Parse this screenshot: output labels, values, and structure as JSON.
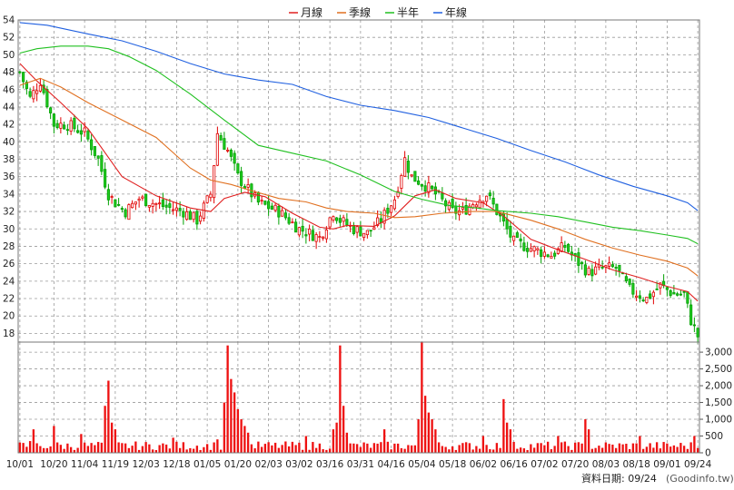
{
  "chart_data": [
    {
      "type": "line",
      "panel": "price",
      "legend": [
        {
          "label": "月線",
          "color": "#e02020"
        },
        {
          "label": "季線",
          "color": "#e07020"
        },
        {
          "label": "半年",
          "color": "#20c020"
        },
        {
          "label": "年線",
          "color": "#2060e0"
        }
      ],
      "legend_placement": "top-center",
      "ylim": [
        17,
        54
      ],
      "yticks": [
        18,
        20,
        22,
        24,
        26,
        28,
        30,
        32,
        34,
        36,
        38,
        40,
        42,
        44,
        46,
        48,
        50,
        52,
        54
      ],
      "grid": true,
      "x_tick_labels": [
        "10/01",
        "10/20",
        "11/04",
        "11/19",
        "12/03",
        "12/18",
        "01/05",
        "01/20",
        "02/03",
        "03/02",
        "03/16",
        "03/31",
        "04/16",
        "05/04",
        "05/18",
        "06/02",
        "06/16",
        "07/02",
        "07/20",
        "08/03",
        "08/18",
        "09/01",
        "09/24"
      ],
      "x_tick_index": [
        0,
        10,
        19,
        28,
        37,
        46,
        55,
        64,
        73,
        82,
        91,
        100,
        109,
        118,
        127,
        136,
        145,
        154,
        163,
        172,
        181,
        190,
        199
      ],
      "n_bars": 200,
      "close_anchors": [
        [
          0,
          48
        ],
        [
          3,
          45
        ],
        [
          6,
          47
        ],
        [
          10,
          42
        ],
        [
          14,
          42
        ],
        [
          19,
          41
        ],
        [
          23,
          38
        ],
        [
          26,
          34
        ],
        [
          28,
          33
        ],
        [
          31,
          32
        ],
        [
          35,
          33.5
        ],
        [
          39,
          33
        ],
        [
          43,
          32.5
        ],
        [
          48,
          32
        ],
        [
          52,
          31
        ],
        [
          56,
          34
        ],
        [
          58,
          41
        ],
        [
          61,
          39
        ],
        [
          64,
          36
        ],
        [
          70,
          33
        ],
        [
          76,
          32
        ],
        [
          82,
          30
        ],
        [
          88,
          29
        ],
        [
          92,
          32
        ],
        [
          94,
          31
        ],
        [
          98,
          30
        ],
        [
          102,
          29.5
        ],
        [
          106,
          31
        ],
        [
          110,
          33.5
        ],
        [
          113,
          38
        ],
        [
          115,
          36
        ],
        [
          119,
          35
        ],
        [
          122,
          34
        ],
        [
          127,
          32
        ],
        [
          130,
          32
        ],
        [
          133,
          33
        ],
        [
          137,
          34
        ],
        [
          140,
          32
        ],
        [
          145,
          28.5
        ],
        [
          152,
          27.5
        ],
        [
          156,
          27
        ],
        [
          160,
          28
        ],
        [
          163,
          26.5
        ],
        [
          167,
          25
        ],
        [
          171,
          25.5
        ],
        [
          175,
          25.5
        ],
        [
          179,
          23
        ],
        [
          184,
          22
        ],
        [
          188,
          23.5
        ],
        [
          192,
          22.5
        ],
        [
          195,
          22.5
        ],
        [
          197,
          19.5
        ],
        [
          199,
          17.7
        ]
      ],
      "ma_series": [
        {
          "name": "月線",
          "color": "#e02020",
          "points": [
            [
              0,
              49
            ],
            [
              5,
              47
            ],
            [
              12,
              44.5
            ],
            [
              20,
              41.5
            ],
            [
              30,
              36
            ],
            [
              40,
              33.8
            ],
            [
              50,
              32.4
            ],
            [
              56,
              32
            ],
            [
              60,
              33.5
            ],
            [
              66,
              34.2
            ],
            [
              72,
              33.7
            ],
            [
              80,
              31.8
            ],
            [
              88,
              30.2
            ],
            [
              92,
              30
            ],
            [
              96,
              30.4
            ],
            [
              104,
              30.3
            ],
            [
              110,
              31.5
            ],
            [
              116,
              33.8
            ],
            [
              122,
              34.5
            ],
            [
              128,
              33.5
            ],
            [
              136,
              33
            ],
            [
              142,
              31.5
            ],
            [
              150,
              28.8
            ],
            [
              158,
              27.6
            ],
            [
              166,
              26.5
            ],
            [
              174,
              25.3
            ],
            [
              182,
              24.4
            ],
            [
              190,
              23.4
            ],
            [
              196,
              22.8
            ],
            [
              199,
              21.7
            ]
          ]
        },
        {
          "name": "季線",
          "color": "#e07020",
          "points": [
            [
              0,
              46.5
            ],
            [
              6,
              47.3
            ],
            [
              12,
              46.3
            ],
            [
              20,
              44.5
            ],
            [
              30,
              42.5
            ],
            [
              40,
              40.5
            ],
            [
              50,
              37
            ],
            [
              56,
              35.6
            ],
            [
              62,
              35.1
            ],
            [
              68,
              34.4
            ],
            [
              76,
              33.5
            ],
            [
              84,
              33.1
            ],
            [
              90,
              32.4
            ],
            [
              96,
              32
            ],
            [
              104,
              31.8
            ],
            [
              110,
              31.3
            ],
            [
              116,
              31.4
            ],
            [
              124,
              31.8
            ],
            [
              132,
              32
            ],
            [
              140,
              32
            ],
            [
              150,
              31
            ],
            [
              158,
              30
            ],
            [
              166,
              28.8
            ],
            [
              174,
              27.8
            ],
            [
              182,
              27
            ],
            [
              190,
              26.3
            ],
            [
              196,
              25.5
            ],
            [
              199,
              24.6
            ]
          ]
        },
        {
          "name": "半年",
          "color": "#20c020",
          "points": [
            [
              0,
              50.2
            ],
            [
              5,
              50.7
            ],
            [
              12,
              51
            ],
            [
              20,
              51
            ],
            [
              26,
              50.7
            ],
            [
              32,
              49.8
            ],
            [
              40,
              48.2
            ],
            [
              50,
              45.5
            ],
            [
              60,
              42.5
            ],
            [
              70,
              39.6
            ],
            [
              80,
              38.7
            ],
            [
              90,
              37.8
            ],
            [
              100,
              36.2
            ],
            [
              110,
              34.3
            ],
            [
              118,
              33.4
            ],
            [
              126,
              32.7
            ],
            [
              134,
              32.4
            ],
            [
              140,
              32.1
            ],
            [
              150,
              31.8
            ],
            [
              158,
              31.4
            ],
            [
              166,
              30.8
            ],
            [
              174,
              30.2
            ],
            [
              182,
              29.8
            ],
            [
              190,
              29.3
            ],
            [
              196,
              28.9
            ],
            [
              199,
              28.3
            ]
          ]
        },
        {
          "name": "年線",
          "color": "#2060e0",
          "points": [
            [
              0,
              53.7
            ],
            [
              8,
              53.4
            ],
            [
              20,
              52.4
            ],
            [
              30,
              51.6
            ],
            [
              40,
              50.4
            ],
            [
              50,
              49
            ],
            [
              60,
              47.8
            ],
            [
              70,
              47.1
            ],
            [
              80,
              46.6
            ],
            [
              90,
              45.2
            ],
            [
              100,
              44.2
            ],
            [
              110,
              43.6
            ],
            [
              120,
              42.8
            ],
            [
              130,
              41.6
            ],
            [
              140,
              40.4
            ],
            [
              150,
              39
            ],
            [
              160,
              37.7
            ],
            [
              170,
              36.2
            ],
            [
              180,
              34.9
            ],
            [
              190,
              33.8
            ],
            [
              196,
              33
            ],
            [
              199,
              32.1
            ]
          ]
        }
      ]
    },
    {
      "type": "bar",
      "panel": "volume",
      "ylim": [
        0,
        3300
      ],
      "y_tick_labels": [
        "0",
        "500",
        "1,000",
        "1,500",
        "2,000",
        "2,500",
        "3,000"
      ],
      "y_tick_values": [
        0,
        500,
        1000,
        1500,
        2000,
        2500,
        3000
      ],
      "bar_color": "#ee1111",
      "spikes": [
        [
          3,
          350
        ],
        [
          4,
          700
        ],
        [
          10,
          800
        ],
        [
          18,
          560
        ],
        [
          25,
          1400
        ],
        [
          26,
          2150
        ],
        [
          27,
          900
        ],
        [
          28,
          700
        ],
        [
          45,
          450
        ],
        [
          58,
          400
        ],
        [
          60,
          1500
        ],
        [
          61,
          3200
        ],
        [
          62,
          2200
        ],
        [
          63,
          1800
        ],
        [
          64,
          1300
        ],
        [
          65,
          1000
        ],
        [
          66,
          800
        ],
        [
          67,
          600
        ],
        [
          84,
          500
        ],
        [
          92,
          700
        ],
        [
          93,
          900
        ],
        [
          94,
          3200
        ],
        [
          95,
          1400
        ],
        [
          96,
          600
        ],
        [
          107,
          700
        ],
        [
          117,
          1000
        ],
        [
          118,
          3300
        ],
        [
          119,
          1700
        ],
        [
          120,
          1200
        ],
        [
          121,
          1000
        ],
        [
          122,
          700
        ],
        [
          136,
          500
        ],
        [
          142,
          1600
        ],
        [
          143,
          900
        ],
        [
          144,
          700
        ],
        [
          158,
          500
        ],
        [
          166,
          1000
        ],
        [
          167,
          700
        ],
        [
          182,
          500
        ],
        [
          198,
          500
        ]
      ]
    }
  ],
  "footer": {
    "date_label": "資料日期: 09/24",
    "source": "(Goodinfo.tw)"
  }
}
